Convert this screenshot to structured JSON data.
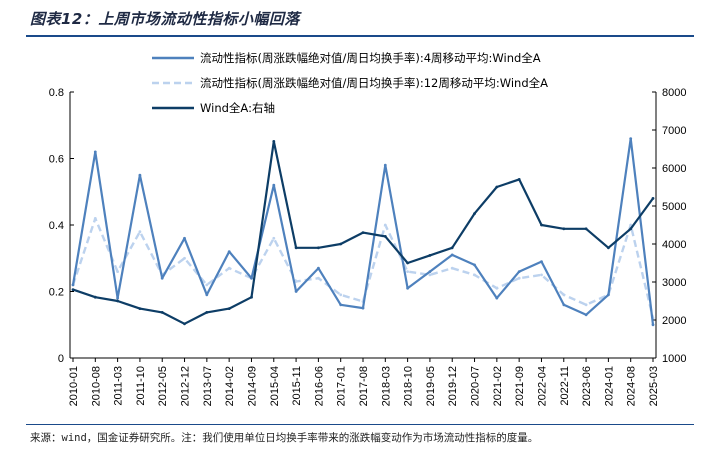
{
  "header": {
    "title": "图表12：上周市场流动性指标小幅回落"
  },
  "footer": {
    "source": "来源：wind，国金证券研究所。注：我们使用单位日均换手率带来的涨跌幅变动作为市场流动性指标的度量。"
  },
  "colors": {
    "ma4": "#4e81bd",
    "ma12": "#bcd2ee",
    "index": "#0d3d66",
    "rule": "#1a4a8a"
  },
  "chart_data": {
    "type": "line",
    "x": [
      "2010-01",
      "2010-08",
      "2011-03",
      "2011-10",
      "2012-05",
      "2012-12",
      "2013-07",
      "2014-02",
      "2014-09",
      "2015-04",
      "2015-11",
      "2016-06",
      "2017-01",
      "2017-08",
      "2018-03",
      "2018-10",
      "2019-05",
      "2019-12",
      "2020-07",
      "2021-02",
      "2021-09",
      "2022-04",
      "2022-11",
      "2023-06",
      "2024-01",
      "2024-08",
      "2025-03"
    ],
    "left_axis": {
      "ylim": [
        0,
        0.8
      ],
      "ticks": [
        "0",
        "0.2",
        "0.4",
        "0.6",
        "0.8"
      ]
    },
    "right_axis": {
      "ylim": [
        1000,
        8000
      ],
      "ticks": [
        "1000",
        "2000",
        "3000",
        "4000",
        "5000",
        "6000",
        "7000",
        "8000"
      ]
    },
    "series": [
      {
        "name": "流动性指标(周涨跌幅绝对值/周日均换手率):4周移动平均:Wind全A",
        "axis": "left",
        "style": "solid",
        "values": [
          0.22,
          0.62,
          0.18,
          0.55,
          0.24,
          0.36,
          0.19,
          0.32,
          0.24,
          0.52,
          0.2,
          0.27,
          0.16,
          0.15,
          0.58,
          0.21,
          0.26,
          0.31,
          0.28,
          0.18,
          0.26,
          0.29,
          0.16,
          0.13,
          0.19,
          0.66,
          0.1
        ]
      },
      {
        "name": "流动性指标(周涨跌幅绝对值/周日均换手率):12周移动平均:Wind全A",
        "axis": "left",
        "style": "dashed",
        "values": [
          0.22,
          0.42,
          0.26,
          0.38,
          0.25,
          0.3,
          0.22,
          0.27,
          0.24,
          0.36,
          0.23,
          0.24,
          0.19,
          0.17,
          0.4,
          0.26,
          0.25,
          0.27,
          0.25,
          0.21,
          0.24,
          0.25,
          0.19,
          0.16,
          0.19,
          0.4,
          0.12
        ]
      },
      {
        "name": "Wind全A:右轴",
        "axis": "right",
        "style": "solid",
        "values": [
          2800,
          2600,
          2500,
          2300,
          2200,
          1900,
          2200,
          2300,
          2600,
          6700,
          3900,
          3900,
          4000,
          4300,
          4200,
          3500,
          3700,
          3900,
          4800,
          5500,
          5700,
          4500,
          4400,
          4400,
          3900,
          4400,
          5200
        ]
      }
    ]
  }
}
